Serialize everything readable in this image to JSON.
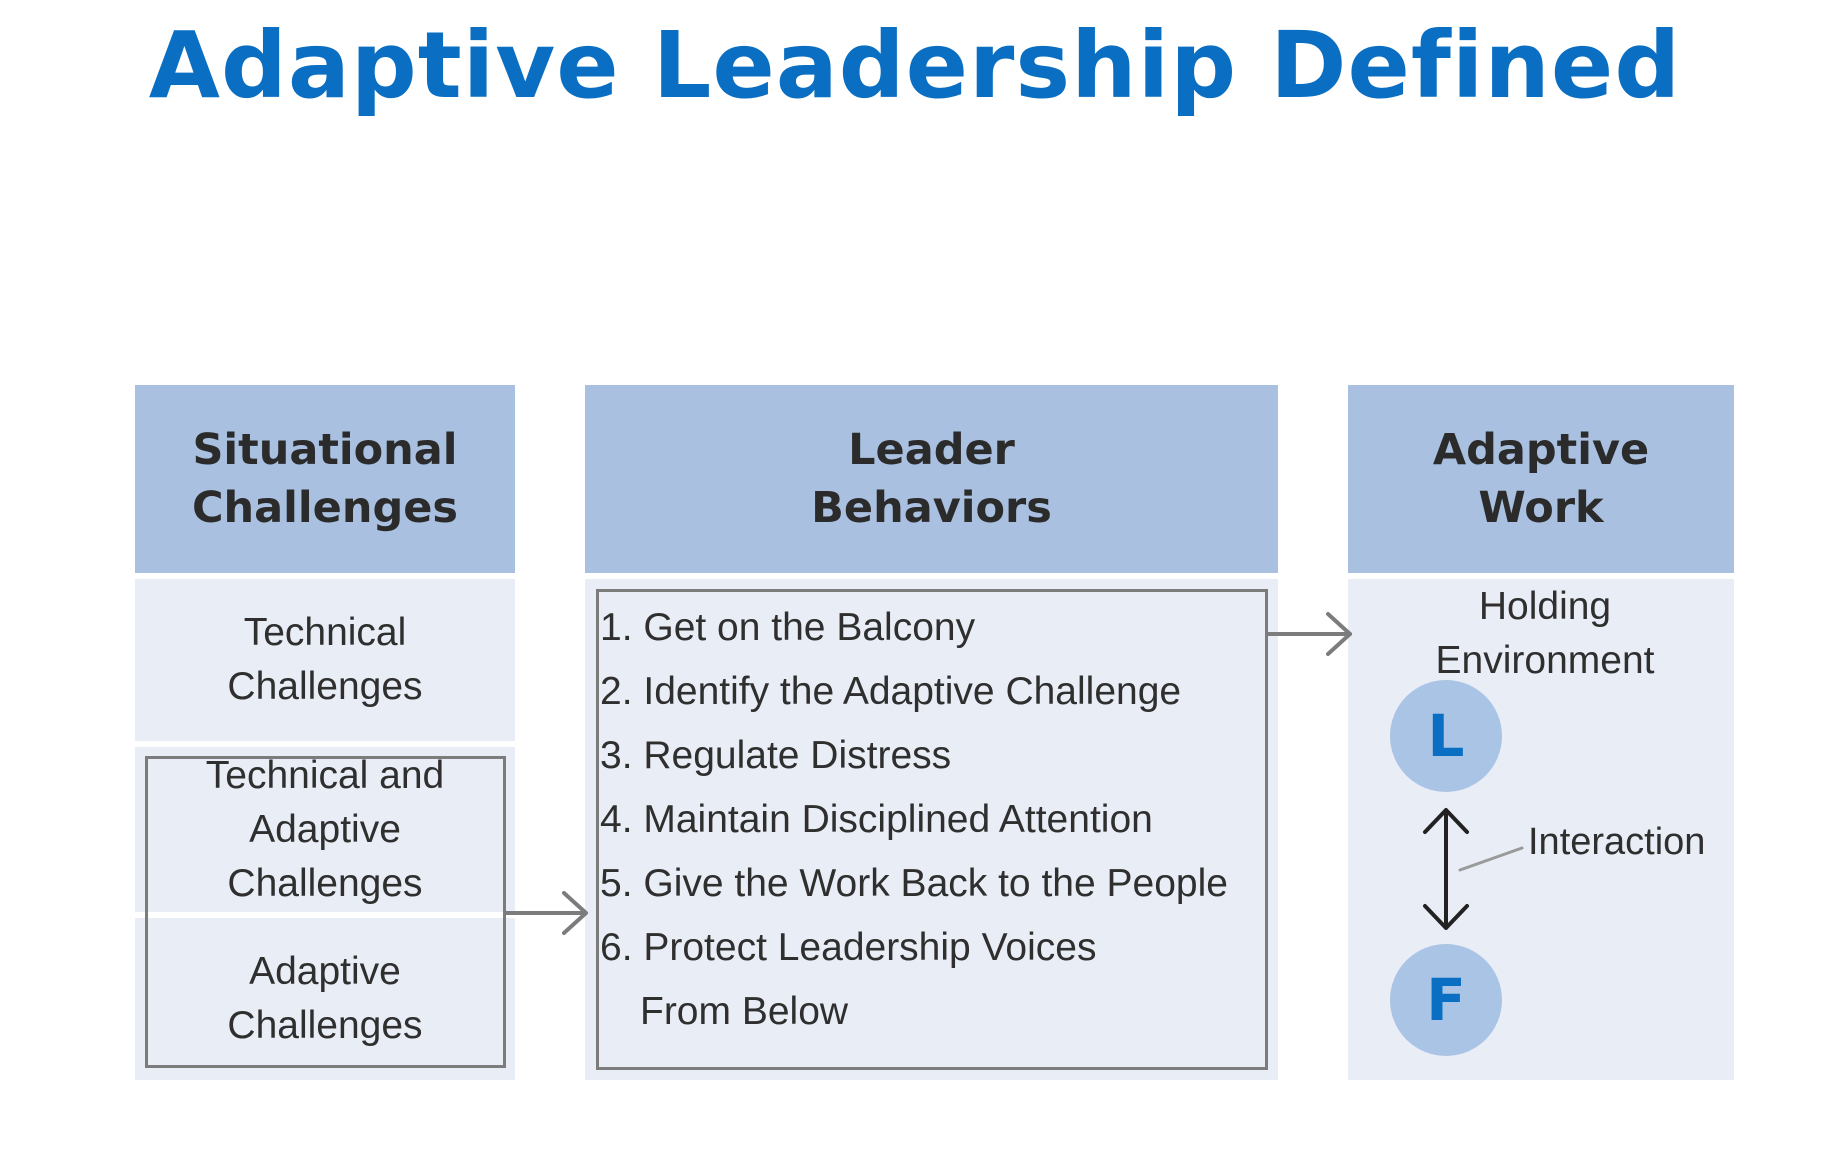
{
  "title": "Adaptive Leadership Defined",
  "columns": {
    "situational": {
      "header": "Situational\nChallenges",
      "items": [
        "Technical\nChallenges",
        "Technical and\nAdaptive\nChallenges",
        "Adaptive\nChallenges"
      ]
    },
    "leader": {
      "header": "Leader\nBehaviors",
      "items": [
        "1. Get on the Balcony",
        "2. Identify the Adaptive Challenge",
        "3. Regulate Distress",
        "4. Maintain Disciplined Attention",
        "5. Give the Work Back to the People",
        "6. Protect Leadership Voices",
        "From Below"
      ]
    },
    "adaptive": {
      "header": "Adaptive\nWork",
      "holding": "Holding\nEnvironment",
      "leader_symbol": "L",
      "follower_symbol": "F",
      "interaction": "Interaction"
    }
  },
  "colors": {
    "title": "#0a6fc2",
    "header_fill": "#a9c0e0",
    "cell_fill": "#e9edf6",
    "circle_fill": "#a9c4e4",
    "arrow": "#7c7c7c"
  }
}
